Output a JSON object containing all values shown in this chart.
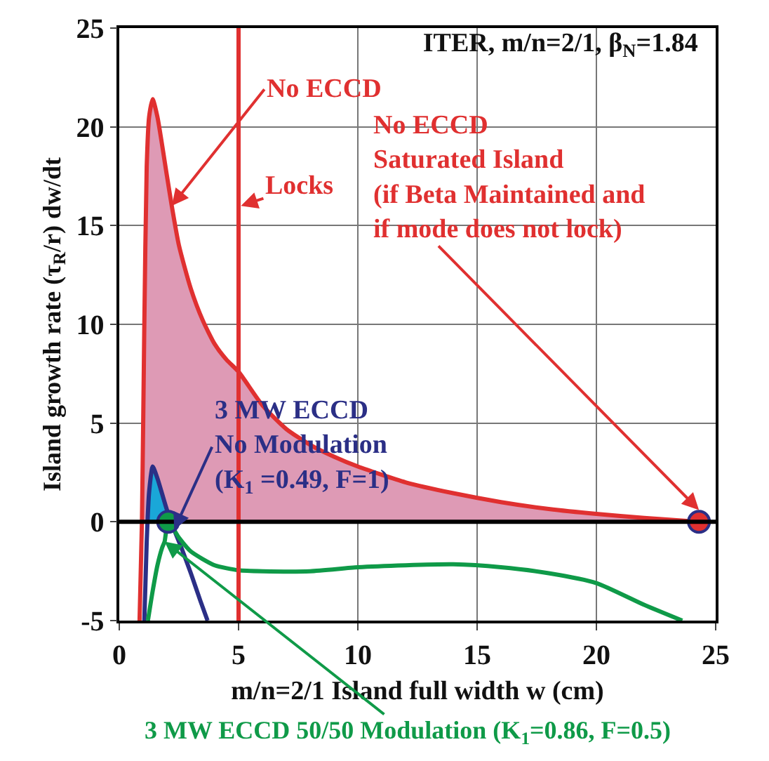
{
  "chart_data": {
    "type": "line",
    "title": "ITER, m/n=2/1, β$_{N}$=1.84",
    "xlabel": "m/n=2/1 Island full width w (cm)",
    "ylabel": "Island growth rate (τ$_{R}$/r) dw/dt",
    "xlim": [
      0,
      25
    ],
    "xticks": [
      0,
      5,
      10,
      15,
      20,
      25
    ],
    "ylim": [
      -5,
      25
    ],
    "yticks": [
      -5,
      0,
      5,
      10,
      15,
      20,
      25
    ],
    "grid": true,
    "series": [
      {
        "type": "area",
        "color": "#de9ab5",
        "x": [
          0.95,
          1.05,
          1.15,
          1.25,
          1.4,
          1.6,
          2,
          2.2,
          2.5,
          3,
          3.5,
          4,
          4.5,
          5,
          6,
          7,
          8,
          9,
          10,
          12,
          14,
          16,
          18,
          20,
          22,
          24.3
        ],
        "values": [
          0,
          10,
          18,
          20.5,
          21.4,
          20.5,
          17.5,
          16,
          14,
          11.8,
          10.2,
          9,
          8.2,
          7.6,
          5.9,
          4.7,
          3.9,
          3.3,
          2.8,
          2.0,
          1.45,
          1.0,
          0.65,
          0.4,
          0.2,
          0
        ]
      },
      {
        "type": "area",
        "color": "#1aa7d8",
        "x": [
          1.2,
          1.25,
          1.4,
          1.6,
          1.8,
          2.0,
          2.2
        ],
        "values": [
          0,
          1.5,
          2.8,
          2.2,
          1.4,
          0.6,
          0
        ]
      },
      {
        "color": "#e03030",
        "x": [
          0.85,
          0.95,
          1.05,
          1.15,
          1.25,
          1.4,
          1.6,
          2,
          2.2,
          2.5,
          3,
          3.5,
          4,
          4.5,
          5,
          6,
          7,
          8,
          9,
          10,
          12,
          14,
          16,
          18,
          20,
          22,
          24.3
        ],
        "values": [
          -5,
          0,
          10,
          18,
          20.5,
          21.4,
          20.5,
          17.5,
          16,
          14,
          11.8,
          10.2,
          9,
          8.2,
          7.6,
          5.9,
          4.7,
          3.9,
          3.3,
          2.8,
          2.0,
          1.45,
          1.0,
          0.65,
          0.4,
          0.2,
          0
        ]
      },
      {
        "color": "#2b2f86",
        "x": [
          1.05,
          1.15,
          1.25,
          1.4,
          1.6,
          1.8,
          2.0,
          2.2,
          2.3,
          2.6,
          3.0,
          3.4,
          3.7
        ],
        "values": [
          -5,
          -1,
          1.5,
          2.8,
          2.2,
          1.4,
          0.6,
          0,
          -0.4,
          -1.3,
          -2.6,
          -4,
          -5
        ]
      },
      {
        "color": "#0f9a48",
        "x": [
          1.2,
          1.4,
          1.6,
          1.8,
          1.9,
          2.05,
          2.5,
          3,
          4,
          5,
          6,
          8,
          10,
          12,
          14,
          16,
          18,
          20,
          22,
          23.6
        ],
        "values": [
          -5,
          -3.5,
          -2.2,
          -1.3,
          -1.0,
          0,
          -0.8,
          -1.5,
          -2.2,
          -2.45,
          -2.5,
          -2.5,
          -2.3,
          -2.2,
          -2.15,
          -2.3,
          -2.6,
          -3.1,
          -4.2,
          -5
        ]
      },
      {
        "type": "scatter",
        "color": "#e03030",
        "x": [
          24.3
        ],
        "values": [
          0
        ]
      },
      {
        "type": "scatter",
        "color": "#0f9a48",
        "x": [
          2.05
        ],
        "values": [
          0
        ]
      }
    ],
    "ref_lines": [
      {
        "axis": "x",
        "value": 5,
        "label": "Locks",
        "color": "#e03030"
      },
      {
        "axis": "y",
        "value": 0,
        "color": "#000000"
      }
    ],
    "annotations": [
      {
        "text": "No ECCD",
        "x": 2.2,
        "y": 16
      },
      {
        "text": "No ECCD\nSaturated Island\n(if Beta Maintained and\nif mode does not lock)",
        "x": 24.3,
        "y": 0.6
      },
      {
        "text": "3 MW ECCD\nNo Modulation\n(K$_{1}$ =0.49, F=1)",
        "x": 2.3,
        "y": -0.4
      },
      {
        "text": "3 MW ECCD 50/50 Modulation (K$_{1}$=0.86, F=0.5)",
        "x": 1.9,
        "y": -1.0
      }
    ]
  }
}
